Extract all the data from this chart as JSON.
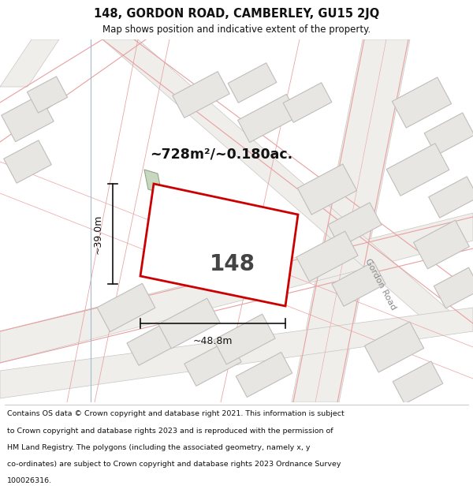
{
  "title_line1": "148, GORDON ROAD, CAMBERLEY, GU15 2JQ",
  "title_line2": "Map shows position and indicative extent of the property.",
  "area_text": "~728m²/~0.180ac.",
  "property_number": "148",
  "dim_width": "~48.8m",
  "dim_height": "~39.0m",
  "footer_lines": [
    "Contains OS data © Crown copyright and database right 2021. This information is subject",
    "to Crown copyright and database rights 2023 and is reproduced with the permission of",
    "HM Land Registry. The polygons (including the associated geometry, namely x, y",
    "co-ordinates) are subject to Crown copyright and database rights 2023 Ordnance Survey",
    "100026316."
  ],
  "bg_color": "#f5f3f0",
  "road_band_color": "#e8e6e2",
  "building_fill": "#e8e6e2",
  "building_stroke": "#c0bebb",
  "road_line_color": "#e8a0a0",
  "property_stroke": "#cc0000",
  "property_fill": "#ffffff",
  "green_fill": "#c8d8c0",
  "green_stroke": "#90a888",
  "gordon_road_label": "Gordon Road",
  "dim_color": "#111111"
}
